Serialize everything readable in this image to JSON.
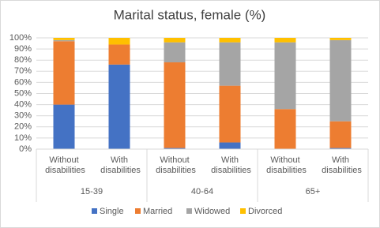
{
  "chart_data": {
    "type": "stacked_bar_percent",
    "title": "Marital status, female (%)",
    "categories": [
      "Without disabilities",
      "With disabilities",
      "Without disabilities",
      "With disabilities",
      "Without disabilities",
      "With disabilities"
    ],
    "category_groups": [
      "15-39",
      "40-64",
      "65+"
    ],
    "series": [
      {
        "name": "Single",
        "color": "#4472c4",
        "values": [
          40,
          76,
          1,
          6,
          0,
          1
        ]
      },
      {
        "name": "Married",
        "color": "#ed7d31",
        "values": [
          57,
          18,
          77,
          51,
          36,
          24
        ]
      },
      {
        "name": "Widowed",
        "color": "#a5a5a5",
        "values": [
          1,
          0,
          18,
          39,
          60,
          73
        ]
      },
      {
        "name": "Divorced",
        "color": "#ffc000",
        "values": [
          2,
          6,
          4,
          4,
          4,
          2
        ]
      }
    ],
    "ylim": [
      0,
      100
    ],
    "yticks": [
      {
        "value": 0,
        "label": "0%"
      },
      {
        "value": 10,
        "label": "10%"
      },
      {
        "value": 20,
        "label": "20%"
      },
      {
        "value": 30,
        "label": "30%"
      },
      {
        "value": 40,
        "label": "40%"
      },
      {
        "value": 50,
        "label": "50%"
      },
      {
        "value": 60,
        "label": "60%"
      },
      {
        "value": 70,
        "label": "70%"
      },
      {
        "value": 80,
        "label": "80%"
      },
      {
        "value": 90,
        "label": "90%"
      },
      {
        "value": 100,
        "label": "100%"
      }
    ],
    "grid": true,
    "legend": "bottom"
  }
}
